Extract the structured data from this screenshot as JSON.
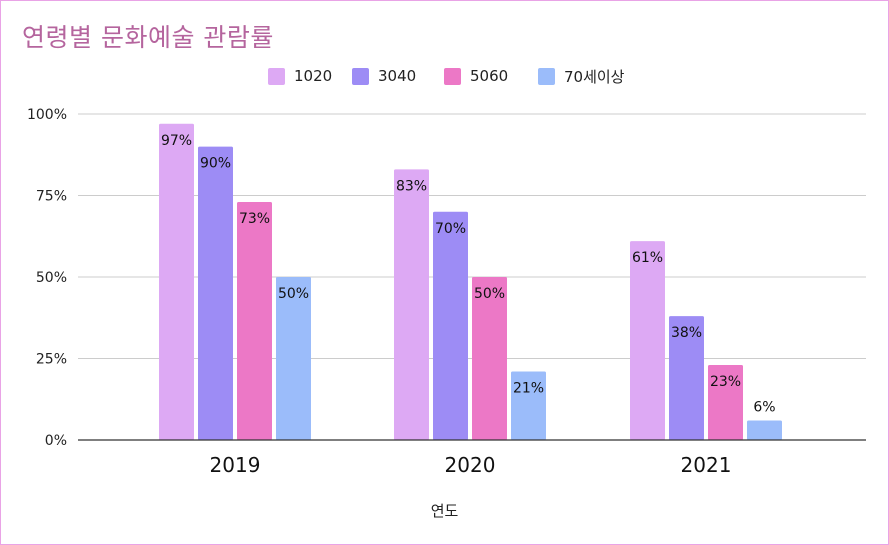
{
  "chart_data": {
    "type": "bar",
    "title": "연령별 문화예술 관람률",
    "xlabel": "연도",
    "ylabel": "",
    "categories": [
      "2019",
      "2020",
      "2021"
    ],
    "ylim": [
      0,
      100
    ],
    "yticks": [
      {
        "value": 0,
        "label": "0%"
      },
      {
        "value": 25,
        "label": "25%"
      },
      {
        "value": 50,
        "label": "50%"
      },
      {
        "value": 75,
        "label": "75%"
      },
      {
        "value": 100,
        "label": "100%"
      }
    ],
    "grid": true,
    "legend": "top-center",
    "series": [
      {
        "name": "1020",
        "color": "#dda9f4",
        "values": [
          97,
          83,
          61
        ],
        "labels": [
          "97%",
          "83%",
          "61%"
        ]
      },
      {
        "name": "3040",
        "color": "#9d8cf5",
        "values": [
          90,
          70,
          38
        ],
        "labels": [
          "90%",
          "70%",
          "38%"
        ]
      },
      {
        "name": "5060",
        "color": "#ec78c6",
        "values": [
          73,
          50,
          23
        ],
        "labels": [
          "73%",
          "50%",
          "23%"
        ]
      },
      {
        "name": "70세이상",
        "color": "#9bbcfa",
        "values": [
          50,
          21,
          6
        ],
        "labels": [
          "50%",
          "21%",
          "6%"
        ]
      }
    ]
  }
}
